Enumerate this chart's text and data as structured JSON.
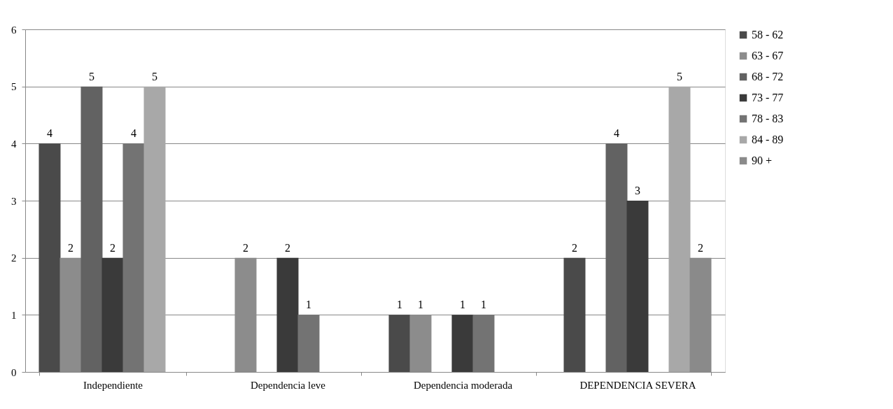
{
  "chart_data": {
    "type": "bar",
    "categories": [
      "Independiente",
      "Dependencia leve",
      "Dependencia moderada",
      "DEPENDENCIA SEVERA"
    ],
    "series": [
      {
        "name": "58 - 62",
        "color": "#4a4a4a",
        "values": [
          4,
          null,
          1,
          2
        ]
      },
      {
        "name": "63 - 67",
        "color": "#8c8c8c",
        "values": [
          2,
          2,
          1,
          null
        ]
      },
      {
        "name": "68 - 72",
        "color": "#626262",
        "values": [
          5,
          null,
          null,
          4
        ]
      },
      {
        "name": "73 - 77",
        "color": "#3a3a3a",
        "values": [
          2,
          2,
          1,
          3
        ]
      },
      {
        "name": "78 - 83",
        "color": "#737373",
        "values": [
          4,
          1,
          1,
          null
        ]
      },
      {
        "name": "84 - 89",
        "color": "#a8a8a8",
        "values": [
          5,
          null,
          null,
          5
        ]
      },
      {
        "name": "90 +",
        "color": "#8a8a8a",
        "values": [
          null,
          null,
          null,
          2
        ]
      }
    ],
    "ylim": [
      0,
      6
    ],
    "yticks": [
      0,
      1,
      2,
      3,
      4,
      5,
      6
    ],
    "grid": "y",
    "legend": "right",
    "data_labels": true
  }
}
